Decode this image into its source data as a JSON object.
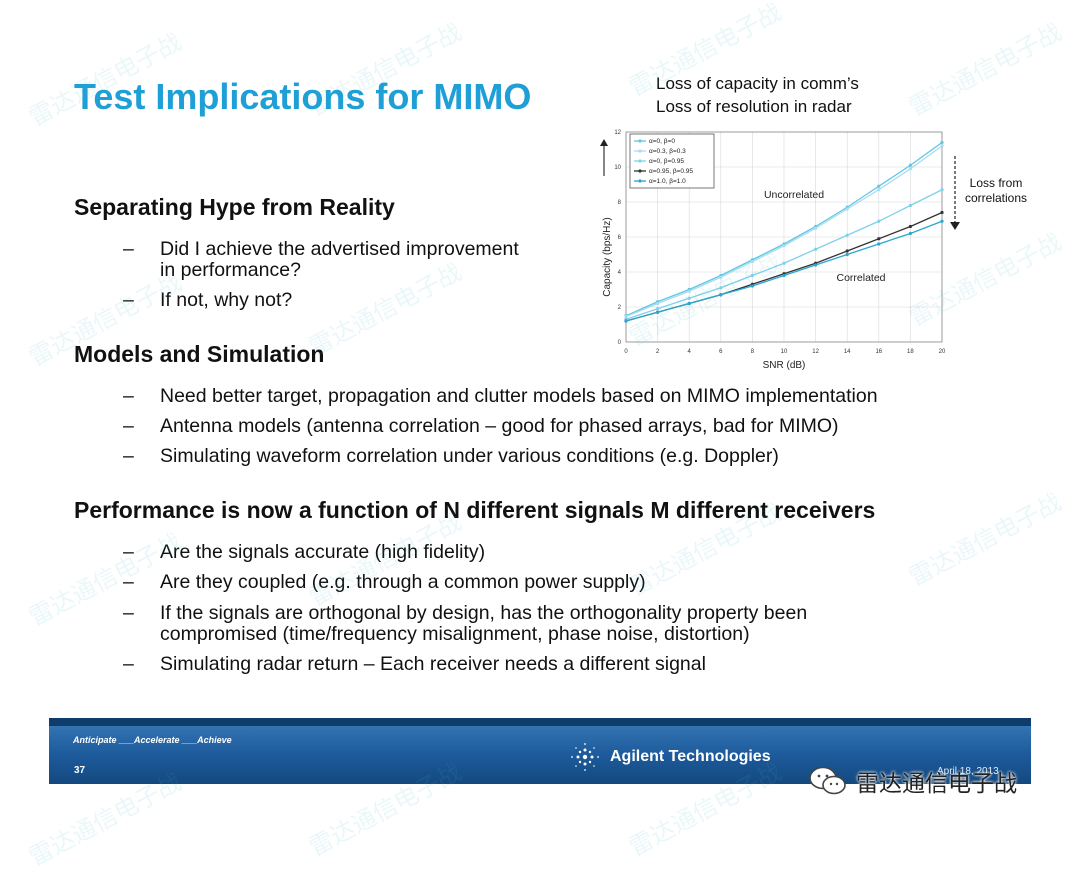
{
  "slide": {
    "title": "Test Implications for MIMO",
    "chart_caption": [
      "Loss of capacity in comm’s",
      "Loss of resolution in radar"
    ],
    "sections": [
      {
        "heading": "Separating Hype from Reality",
        "bullets": [
          [
            "Did I achieve the advertised improvement",
            "in performance?"
          ],
          [
            "If not, why not?"
          ]
        ]
      },
      {
        "heading": "Models and Simulation",
        "bullets": [
          [
            "Need better target, propagation and clutter models based on MIMO implementation"
          ],
          [
            "Antenna models (antenna correlation – good for phased arrays, bad for MIMO)"
          ],
          [
            "Simulating waveform correlation under various conditions (e.g. Doppler)"
          ]
        ]
      },
      {
        "heading": "Performance is now a function of N different signals M different receivers",
        "bullets": [
          [
            "Are the signals accurate (high fidelity)"
          ],
          [
            "Are they coupled (e.g. through a common power supply)"
          ],
          [
            "If the signals are orthogonal by design, has the orthogonality property been",
            "compromised (time/frequency misalignment, phase noise, distortion)"
          ],
          [
            "Simulating radar return – Each receiver needs a different signal"
          ]
        ]
      }
    ],
    "dash": "–"
  },
  "chart_data": {
    "type": "line",
    "xlabel": "SNR (dB)",
    "ylabel": "Capacity (bps/Hz)",
    "xlim": [
      0,
      20
    ],
    "ylim": [
      0,
      12
    ],
    "xticks": [
      0,
      2,
      4,
      6,
      8,
      10,
      12,
      14,
      16,
      18,
      20
    ],
    "yticks": [
      0,
      2,
      4,
      6,
      8,
      10,
      12
    ],
    "x": [
      0,
      2,
      4,
      6,
      8,
      10,
      12,
      14,
      16,
      18,
      20
    ],
    "series": [
      {
        "name": "α=0, β=0",
        "color": "#5fc6e6",
        "values": [
          1.5,
          2.3,
          3.0,
          3.8,
          4.7,
          5.6,
          6.6,
          7.7,
          8.9,
          10.1,
          11.4
        ]
      },
      {
        "name": "α=0.3, β=0.3",
        "color": "#a9dcee",
        "values": [
          1.45,
          2.2,
          2.9,
          3.7,
          4.6,
          5.5,
          6.5,
          7.6,
          8.7,
          9.9,
          11.2
        ]
      },
      {
        "name": "α=0, β=0.95",
        "color": "#7fd0ea",
        "values": [
          1.3,
          1.9,
          2.5,
          3.1,
          3.8,
          4.5,
          5.3,
          6.1,
          6.9,
          7.8,
          8.7
        ]
      },
      {
        "name": "α=0.95, β=0.95",
        "color": "#333333",
        "values": [
          1.2,
          1.7,
          2.2,
          2.7,
          3.3,
          3.9,
          4.5,
          5.2,
          5.9,
          6.6,
          7.4
        ]
      },
      {
        "name": "α=1.0, β=1.0",
        "color": "#2aa7cf",
        "values": [
          1.2,
          1.7,
          2.2,
          2.7,
          3.2,
          3.8,
          4.4,
          5.0,
          5.6,
          6.2,
          6.9
        ]
      }
    ],
    "annotations": [
      "Uncorrelated",
      "Correlated"
    ],
    "side_note": [
      "Loss from",
      "correlations"
    ]
  },
  "footer": {
    "tagline": "Anticipate ___Accelerate ___Achieve",
    "page_number": "37",
    "brand": "Agilent Technologies",
    "date": "April 18, 2013"
  },
  "watermark": {
    "wechat_label": "雷达通信电子战"
  }
}
